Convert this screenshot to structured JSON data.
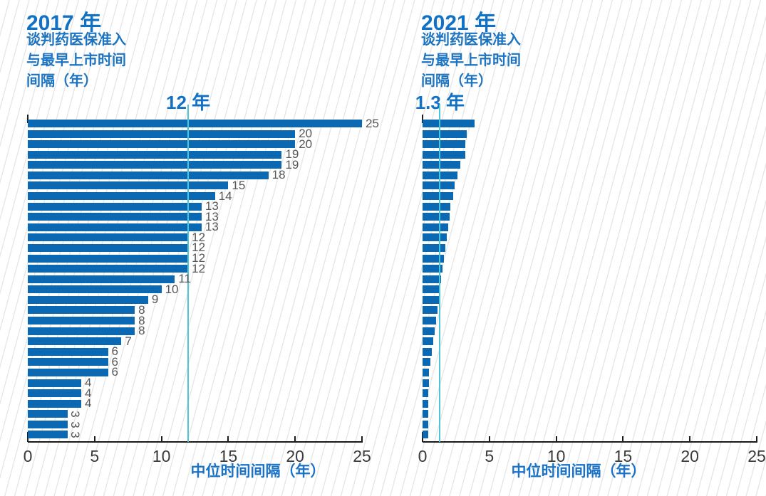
{
  "colors": {
    "bar": "#0b69b4",
    "median_line": "#4cc5d6",
    "heading_blue": "#1171c5",
    "subtitle_blue": "#1d74c0",
    "xlabel_blue": "#1a73c8",
    "tick_label": "#3b3b3b",
    "value_label": "#575757",
    "axis_line": "#1a1a1a",
    "hatch": "#e7e7e7"
  },
  "chart_data": [
    {
      "type": "bar",
      "orientation": "horizontal",
      "title": "2017 年",
      "subtitle_lines": [
        "谈判药医保准入",
        "与最早上市时间",
        "间隔（年）"
      ],
      "median_label": "12 年",
      "median_value": 12,
      "xlabel": "中位时间间隔（年）",
      "xlim": [
        0,
        25
      ],
      "x_ticks": [
        0,
        5,
        10,
        15,
        20,
        25
      ],
      "grid": false,
      "show_value_labels": true,
      "rotated_labels_from_index": 28,
      "values": [
        25,
        20,
        20,
        19,
        19,
        18,
        15,
        14,
        13,
        13,
        13,
        12,
        12,
        12,
        12,
        11,
        10,
        9,
        8,
        8,
        8,
        7,
        6,
        6,
        6,
        4,
        4,
        4,
        3,
        3,
        3
      ]
    },
    {
      "type": "bar",
      "orientation": "horizontal",
      "title": "2021 年",
      "subtitle_lines": [
        "谈判药医保准入",
        "与最早上市时间",
        "间隔（年）"
      ],
      "median_label": "1.3 年",
      "median_value": 1.3,
      "xlabel": "中位时间间隔（年）",
      "xlim": [
        0,
        25
      ],
      "x_ticks": [
        0,
        5,
        10,
        15,
        20,
        25
      ],
      "grid": false,
      "show_value_labels": false,
      "rotated_labels_from_index": null,
      "values": [
        3.9,
        3.3,
        3.2,
        3.2,
        2.8,
        2.6,
        2.4,
        2.3,
        2.1,
        2.0,
        1.9,
        1.8,
        1.7,
        1.6,
        1.5,
        1.4,
        1.3,
        1.2,
        1.1,
        1.0,
        0.9,
        0.8,
        0.7,
        0.6,
        0.5,
        0.5,
        0.45,
        0.45,
        0.4,
        0.4,
        0.4
      ]
    }
  ]
}
